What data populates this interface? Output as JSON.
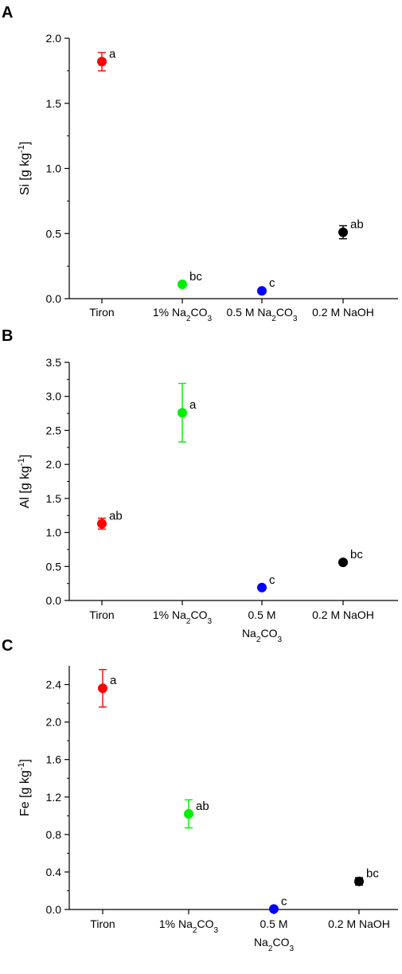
{
  "chart_data": [
    {
      "panel": "A",
      "type": "scatter",
      "ylabel": "Si [g kg-1]",
      "ylabel_parts": [
        "Si [g kg",
        "-1",
        "]"
      ],
      "ylim": [
        0,
        2.0
      ],
      "yticks": [
        "0.0",
        "0.5",
        "1.0",
        "1.5",
        "2.0"
      ],
      "yticks_values": [
        0,
        0.5,
        1.0,
        1.5,
        2.0
      ],
      "categories": [
        {
          "lines": [
            [
              "Tiron"
            ]
          ]
        },
        {
          "lines": [
            [
              "1% Na",
              "2",
              "CO",
              "3"
            ]
          ]
        },
        {
          "lines": [
            [
              "0.5 M Na",
              "2",
              "CO",
              "3"
            ]
          ]
        },
        {
          "lines": [
            [
              "0.2 M NaOH"
            ]
          ]
        }
      ],
      "points": [
        {
          "value": 1.82,
          "error": 0.07,
          "color": "#ff0000",
          "sig": "a"
        },
        {
          "value": 0.11,
          "error": 0,
          "color": "#00ee00",
          "sig": "bc"
        },
        {
          "value": 0.06,
          "error": 0,
          "color": "#0000ff",
          "sig": "c"
        },
        {
          "value": 0.51,
          "error": 0.05,
          "color": "#000000",
          "sig": "ab"
        }
      ]
    },
    {
      "panel": "B",
      "type": "scatter",
      "ylabel": "Al [g kg-1]",
      "ylabel_parts": [
        "Al [g kg",
        "-1",
        "]"
      ],
      "ylim": [
        0,
        3.5
      ],
      "yticks": [
        "0.0",
        "0.5",
        "1.0",
        "1.5",
        "2.0",
        "2.5",
        "3.0",
        "3.5"
      ],
      "yticks_values": [
        0,
        0.5,
        1.0,
        1.5,
        2.0,
        2.5,
        3.0,
        3.5
      ],
      "categories": [
        {
          "lines": [
            [
              "Tiron"
            ]
          ]
        },
        {
          "lines": [
            [
              "1% Na",
              "2",
              "CO",
              "3"
            ]
          ]
        },
        {
          "lines": [
            [
              "0.5 M"
            ],
            [
              "Na",
              "2",
              "CO",
              "3"
            ]
          ]
        },
        {
          "lines": [
            [
              "0.2 M NaOH"
            ]
          ]
        }
      ],
      "points": [
        {
          "value": 1.13,
          "error": 0.08,
          "color": "#ff0000",
          "sig": "ab"
        },
        {
          "value": 2.76,
          "error": 0.43,
          "color": "#00ee00",
          "sig": "a"
        },
        {
          "value": 0.19,
          "error": 0,
          "color": "#0000ff",
          "sig": "c"
        },
        {
          "value": 0.56,
          "error": 0.03,
          "color": "#000000",
          "sig": "bc"
        }
      ]
    },
    {
      "panel": "C",
      "type": "scatter",
      "ylabel": "Fe [g kg-1]",
      "ylabel_parts": [
        "Fe [g kg",
        "-1",
        "]"
      ],
      "ylim": [
        0,
        2.6
      ],
      "yticks": [
        "0.0",
        "0.4",
        "0.8",
        "1.2",
        "1.6",
        "2.0",
        "2.4"
      ],
      "yticks_values": [
        0,
        0.4,
        0.8,
        1.2,
        1.6,
        2.0,
        2.4
      ],
      "categories": [
        {
          "lines": [
            [
              "Tiron"
            ]
          ]
        },
        {
          "lines": [
            [
              "1% Na",
              "2",
              "CO",
              "3"
            ]
          ]
        },
        {
          "lines": [
            [
              "0.5 M"
            ],
            [
              "Na",
              "2",
              "CO",
              "3"
            ]
          ]
        },
        {
          "lines": [
            [
              "0.2 M NaOH"
            ]
          ]
        }
      ],
      "points": [
        {
          "value": 2.36,
          "error": 0.2,
          "color": "#ff0000",
          "sig": "a"
        },
        {
          "value": 1.02,
          "error": 0.15,
          "color": "#00ee00",
          "sig": "ab"
        },
        {
          "value": 0.005,
          "error": 0,
          "color": "#0000ff",
          "sig": "c"
        },
        {
          "value": 0.3,
          "error": 0.04,
          "color": "#000000",
          "sig": "bc"
        }
      ]
    }
  ]
}
